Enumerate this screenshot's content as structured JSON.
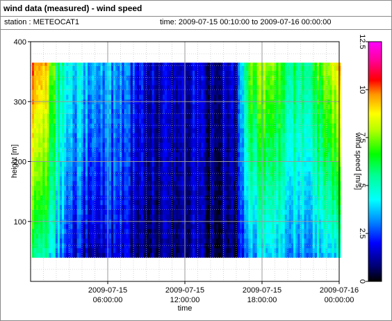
{
  "header": {
    "title": "wind data (measured) - wind speed",
    "station_label": "station : METEOCAT1",
    "time_label": "time: 2009-07-15 00:10:00 to 2009-07-16 00:00:00"
  },
  "chart_data": {
    "type": "heatmap",
    "title": "wind data (measured) - wind speed",
    "xlabel": "time",
    "ylabel": "height [m]",
    "colorbar_label": "wind speed [m/s]",
    "x_ticks": [
      {
        "line1": "2009-07-15",
        "line2": "06:00:00",
        "hour": 6
      },
      {
        "line1": "2009-07-15",
        "line2": "12:00:00",
        "hour": 12
      },
      {
        "line1": "2009-07-15",
        "line2": "18:00:00",
        "hour": 18
      },
      {
        "line1": "2009-07-16",
        "line2": "00:00:00",
        "hour": 24
      }
    ],
    "y_ticks": [
      100,
      200,
      300,
      400
    ],
    "ylim": [
      0,
      400
    ],
    "xlim_hours": [
      0,
      24
    ],
    "colorbar_ticks": [
      "0",
      "2.5",
      "5",
      "7.5",
      "10",
      "12.5"
    ],
    "colorbar_range": [
      0,
      12.5
    ],
    "grid": true,
    "height_range_m": [
      40,
      365
    ],
    "time_step_hours": 0.1667,
    "wind_speed_profile": [
      {
        "hour": 0.2,
        "low": 6.0,
        "high": 10.5
      },
      {
        "hour": 1.0,
        "low": 5.0,
        "high": 9.5
      },
      {
        "hour": 2.0,
        "low": 3.5,
        "high": 6.0
      },
      {
        "hour": 3.0,
        "low": 2.0,
        "high": 4.5
      },
      {
        "hour": 4.0,
        "low": 1.5,
        "high": 4.0
      },
      {
        "hour": 5.0,
        "low": 1.5,
        "high": 4.0
      },
      {
        "hour": 6.0,
        "low": 1.5,
        "high": 3.5
      },
      {
        "hour": 7.0,
        "low": 1.5,
        "high": 3.0
      },
      {
        "hour": 8.0,
        "low": 1.0,
        "high": 2.5
      },
      {
        "hour": 9.0,
        "low": 1.0,
        "high": 2.0
      },
      {
        "hour": 10.0,
        "low": 1.0,
        "high": 1.5
      },
      {
        "hour": 11.0,
        "low": 1.0,
        "high": 1.8
      },
      {
        "hour": 12.0,
        "low": 1.0,
        "high": 1.5
      },
      {
        "hour": 13.0,
        "low": 1.0,
        "high": 1.5
      },
      {
        "hour": 14.0,
        "low": 0.8,
        "high": 1.2
      },
      {
        "hour": 15.0,
        "low": 0.8,
        "high": 1.5
      },
      {
        "hour": 16.0,
        "low": 1.0,
        "high": 2.0
      },
      {
        "hour": 17.0,
        "low": 3.0,
        "high": 7.0
      },
      {
        "hour": 18.0,
        "low": 4.0,
        "high": 8.0
      },
      {
        "hour": 19.0,
        "low": 4.0,
        "high": 7.5
      },
      {
        "hour": 20.0,
        "low": 3.5,
        "high": 6.0
      },
      {
        "hour": 21.0,
        "low": 3.0,
        "high": 5.5
      },
      {
        "hour": 22.0,
        "low": 3.5,
        "high": 6.5
      },
      {
        "hour": 23.0,
        "low": 4.0,
        "high": 8.0
      },
      {
        "hour": 24.0,
        "low": 4.0,
        "high": 9.0
      }
    ]
  }
}
